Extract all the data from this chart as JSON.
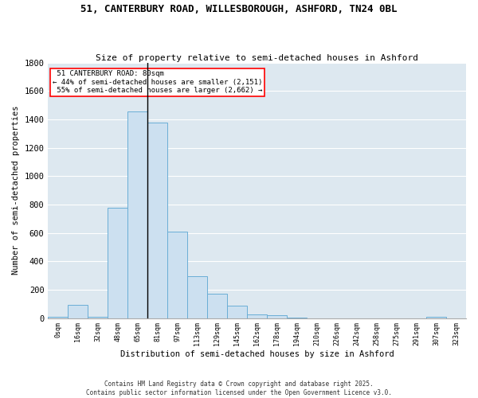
{
  "title1": "51, CANTERBURY ROAD, WILLESBOROUGH, ASHFORD, TN24 0BL",
  "title2": "Size of property relative to semi-detached houses in Ashford",
  "xlabel": "Distribution of semi-detached houses by size in Ashford",
  "ylabel": "Number of semi-detached properties",
  "bar_color": "#cce0f0",
  "bar_edge_color": "#6aaed6",
  "background_color": "#dde8f0",
  "grid_color": "white",
  "categories": [
    "0sqm",
    "16sqm",
    "32sqm",
    "48sqm",
    "65sqm",
    "81sqm",
    "97sqm",
    "113sqm",
    "129sqm",
    "145sqm",
    "162sqm",
    "178sqm",
    "194sqm",
    "210sqm",
    "226sqm",
    "242sqm",
    "258sqm",
    "275sqm",
    "291sqm",
    "307sqm",
    "323sqm"
  ],
  "values": [
    8,
    95,
    8,
    775,
    1455,
    1380,
    610,
    295,
    170,
    88,
    28,
    18,
    5,
    0,
    0,
    0,
    0,
    0,
    0,
    10,
    0
  ],
  "ylim": [
    0,
    1800
  ],
  "yticks": [
    0,
    200,
    400,
    600,
    800,
    1000,
    1200,
    1400,
    1600,
    1800
  ],
  "property_label": "51 CANTERBURY ROAD: 80sqm",
  "pct_smaller": 44,
  "pct_larger": 55,
  "count_smaller": 2151,
  "count_larger": 2662,
  "annotation_box_color": "white",
  "annotation_box_edge": "red",
  "vline_x_index": 4.5,
  "footer1": "Contains HM Land Registry data © Crown copyright and database right 2025.",
  "footer2": "Contains public sector information licensed under the Open Government Licence v3.0."
}
